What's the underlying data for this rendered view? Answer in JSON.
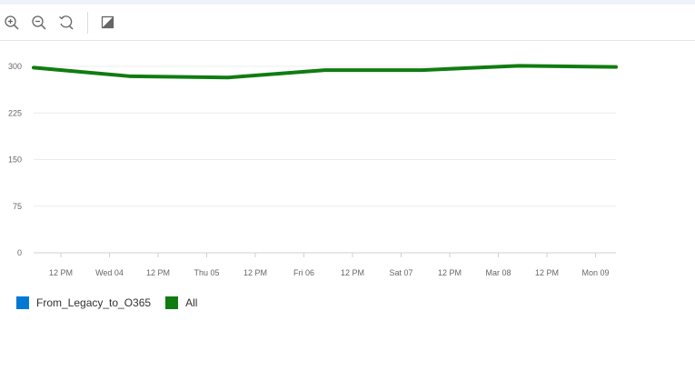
{
  "toolbar": {
    "icons": [
      "zoom-in-icon",
      "zoom-out-icon",
      "reset-zoom-icon",
      "toggle-fill-icon"
    ]
  },
  "chart_data": {
    "type": "line",
    "x_ticks": [
      "12 PM",
      "Wed 04",
      "12 PM",
      "Thu 05",
      "12 PM",
      "Fri 06",
      "12 PM",
      "Sat 07",
      "12 PM",
      "Mar 08",
      "12 PM",
      "Mon 09"
    ],
    "y_ticks": [
      0,
      75,
      150,
      225,
      300
    ],
    "ylim": [
      0,
      300
    ],
    "grid": true,
    "legend_position": "bottom-left",
    "x_points": [
      "Tue 03 00:00",
      "Wed 04 00:00",
      "Thu 05 00:00",
      "Fri 06 00:00",
      "Sat 07 00:00",
      "Mar 08 00:00",
      "Mon 09 00:00"
    ],
    "series": [
      {
        "name": "From_Legacy_to_O365",
        "color": "#0078d4",
        "values": []
      },
      {
        "name": "All",
        "color": "#107c10",
        "values": [
          298,
          284,
          282,
          294,
          294,
          301,
          299
        ]
      }
    ]
  }
}
